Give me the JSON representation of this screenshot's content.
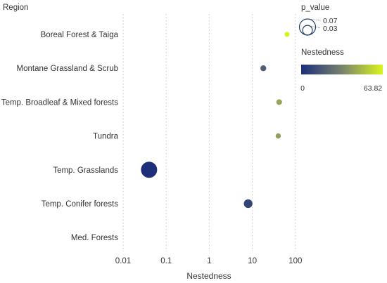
{
  "chart_data": {
    "type": "scatter",
    "y_axis_title": "Region",
    "x_axis_title": "Nestedness",
    "x_scale": "log",
    "xlim": [
      0.01,
      100
    ],
    "x_tick_labels": [
      "0.01",
      "0.1",
      "1",
      "10",
      "100"
    ],
    "x_tick_values": [
      0.01,
      0.1,
      1,
      10,
      100
    ],
    "grid": {
      "vertical": true,
      "style": "dotted"
    },
    "categories": [
      "Boreal Forest & Taiga",
      "Montane Grassland & Scrub",
      "Temp. Broadleaf & Mixed forests",
      "Tundra",
      "Temp. Grasslands",
      "Temp. Conifer forests",
      "Med. Forests"
    ],
    "points": [
      {
        "region": "Boreal Forest & Taiga",
        "nestedness": 63.82,
        "p_value": 0.001
      },
      {
        "region": "Montane Grassland & Scrub",
        "nestedness": 18,
        "p_value": 0.006
      },
      {
        "region": "Temp. Broadleaf & Mixed forests",
        "nestedness": 42,
        "p_value": 0.005
      },
      {
        "region": "Tundra",
        "nestedness": 40,
        "p_value": 0.002
      },
      {
        "region": "Temp. Grasslands",
        "nestedness": 0.04,
        "p_value": 0.07
      },
      {
        "region": "Temp. Conifer forests",
        "nestedness": 8,
        "p_value": 0.023
      }
    ],
    "size_legend": {
      "title": "p_value",
      "entries": [
        {
          "label": "0.07",
          "value": 0.07
        },
        {
          "label": "0.03",
          "value": 0.03
        }
      ]
    },
    "color_legend": {
      "title": "Nestedness",
      "min_label": "0",
      "max_label": "63.82",
      "range": [
        0,
        63.82
      ],
      "colors": [
        "#1d2f7a",
        "#d9f51e"
      ]
    },
    "legend_position": "top-right"
  }
}
